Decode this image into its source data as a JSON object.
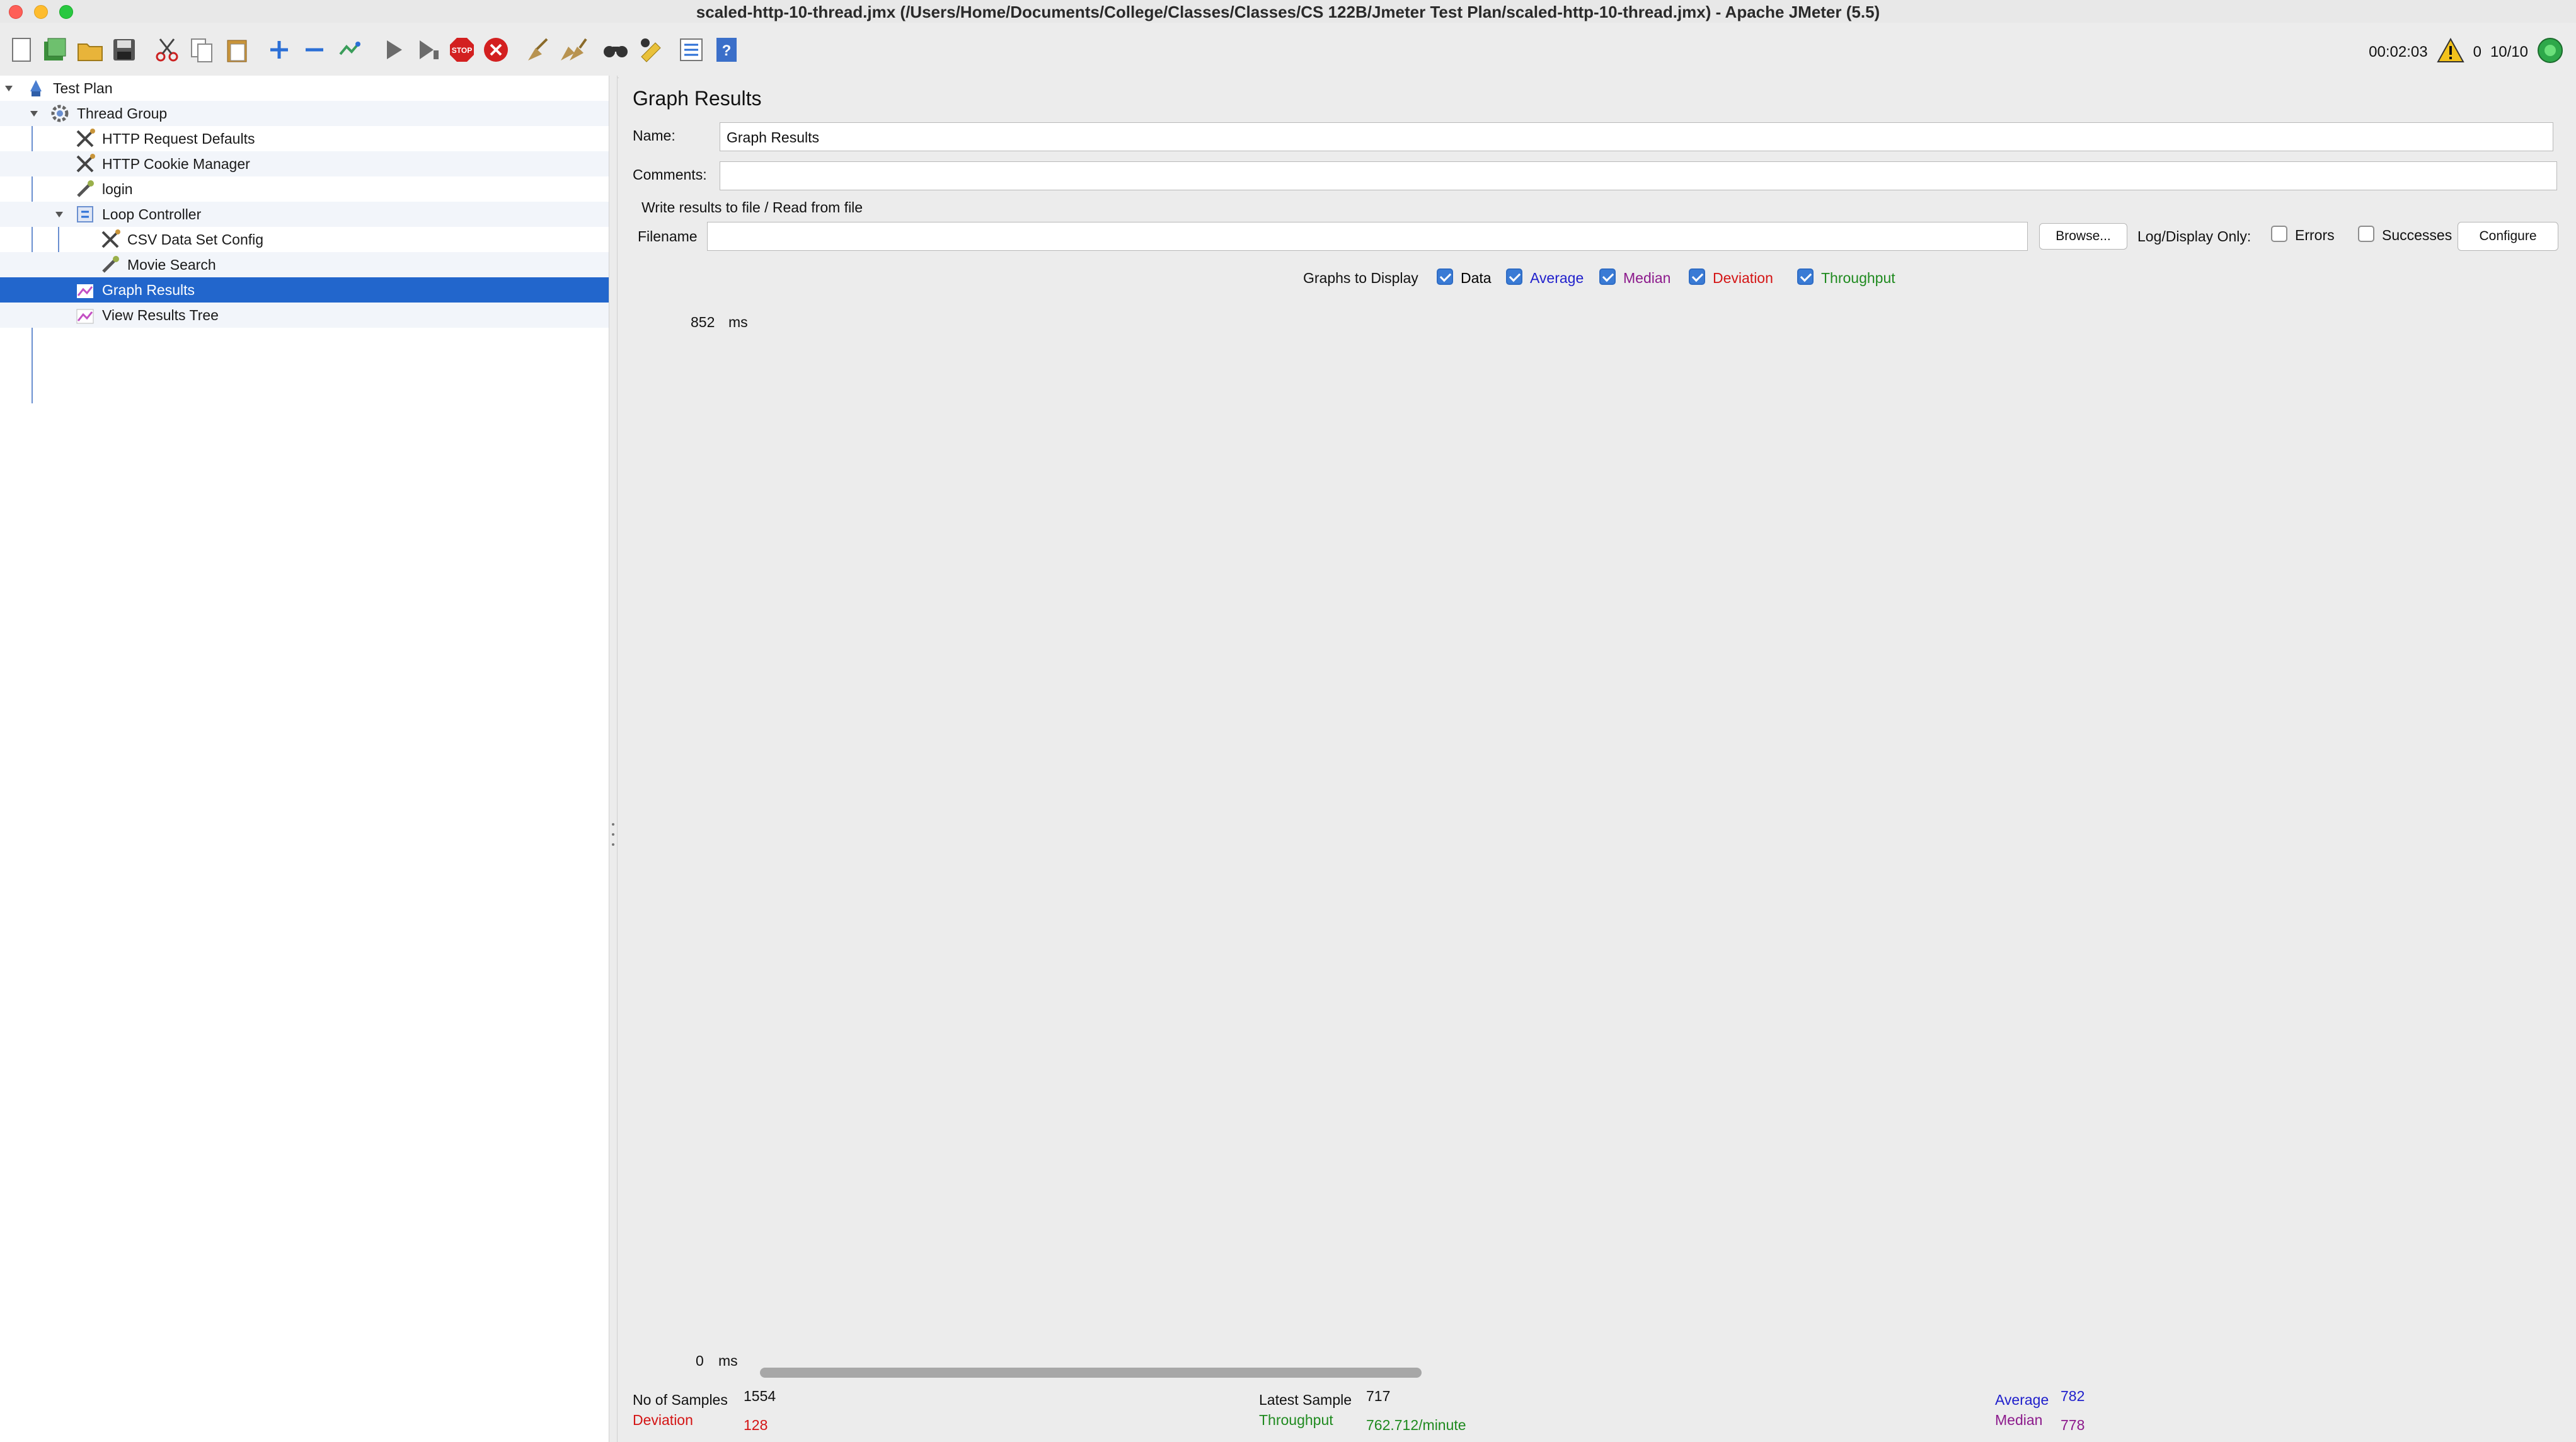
{
  "window": {
    "title": "scaled-http-10-thread.jmx (/Users/Home/Documents/College/Classes/Classes/CS 122B/Jmeter Test Plan/scaled-http-10-thread.jmx) - Apache JMeter (5.5)"
  },
  "toolbar": {
    "icons": [
      "new-icon",
      "templates-icon",
      "open-icon",
      "save-icon",
      "cut-icon",
      "copy-icon",
      "paste-icon",
      "expand-icon",
      "collapse-icon",
      "toggle-icon",
      "start-icon",
      "start-no-pauses-icon",
      "stop-icon",
      "shutdown-icon",
      "clear-icon",
      "clear-all-icon",
      "search-icon",
      "reset-search-icon",
      "function-helper-icon",
      "help-icon"
    ],
    "elapsed_time": "00:02:03",
    "warning_count": "0",
    "threads": "10/10"
  },
  "tree": {
    "items": [
      {
        "label": "Test Plan",
        "icon": "test-plan-icon"
      },
      {
        "label": "Thread Group",
        "icon": "gear-icon"
      },
      {
        "label": "HTTP Request Defaults",
        "icon": "config-icon"
      },
      {
        "label": "HTTP Cookie Manager",
        "icon": "config-icon"
      },
      {
        "label": "login",
        "icon": "sampler-icon"
      },
      {
        "label": "Loop Controller",
        "icon": "controller-icon"
      },
      {
        "label": "CSV Data Set Config",
        "icon": "config-icon"
      },
      {
        "label": "Movie Search",
        "icon": "sampler-icon"
      },
      {
        "label": "Graph Results",
        "icon": "graph-icon"
      },
      {
        "label": "View Results Tree",
        "icon": "graph-icon"
      }
    ]
  },
  "panel": {
    "title": "Graph Results",
    "name_label": "Name:",
    "name_value": "Graph Results",
    "comments_label": "Comments:",
    "comments_value": "",
    "file_group_title": "Write results to file / Read from file",
    "filename_label": "Filename",
    "filename_value": "",
    "browse_label": "Browse...",
    "log_display_label": "Log/Display Only:",
    "errors_label": "Errors",
    "successes_label": "Successes",
    "configure_label": "Configure",
    "graphs_label": "Graphs to Display",
    "toggles": [
      {
        "label": "Data",
        "color": "#000000",
        "checked": true
      },
      {
        "label": "Average",
        "color": "#1f1fcc",
        "checked": true
      },
      {
        "label": "Median",
        "color": "#8c1a8c",
        "checked": true
      },
      {
        "label": "Deviation",
        "color": "#d41414",
        "checked": true
      },
      {
        "label": "Throughput",
        "color": "#1f8a1f",
        "checked": true
      }
    ]
  },
  "graph": {
    "y_max_label": "852",
    "y_min_label": "0",
    "y_unit": "ms"
  },
  "stats": {
    "samples_label": "No of Samples",
    "samples_value": "1554",
    "deviation_label": "Deviation",
    "deviation_value": "128",
    "latest_label": "Latest Sample",
    "latest_value": "717",
    "throughput_label": "Throughput",
    "throughput_value": "762.712/minute",
    "average_label": "Average",
    "average_value": "782",
    "median_label": "Median",
    "median_value": "778"
  },
  "chart_data": {
    "type": "scatter",
    "x": [],
    "y": [],
    "series": [
      {
        "name": "Average",
        "values": [],
        "color": "#1f1fcc"
      },
      {
        "name": "Median",
        "values": [],
        "color": "#8c1a8c"
      },
      {
        "name": "Deviation",
        "values": [],
        "color": "#d41414"
      },
      {
        "name": "Throughput",
        "values": [],
        "color": "#1f8a1f"
      },
      {
        "name": "Data",
        "values": [],
        "color": "#000000"
      }
    ],
    "ylim": [
      0,
      852
    ],
    "ylabel": "ms"
  }
}
